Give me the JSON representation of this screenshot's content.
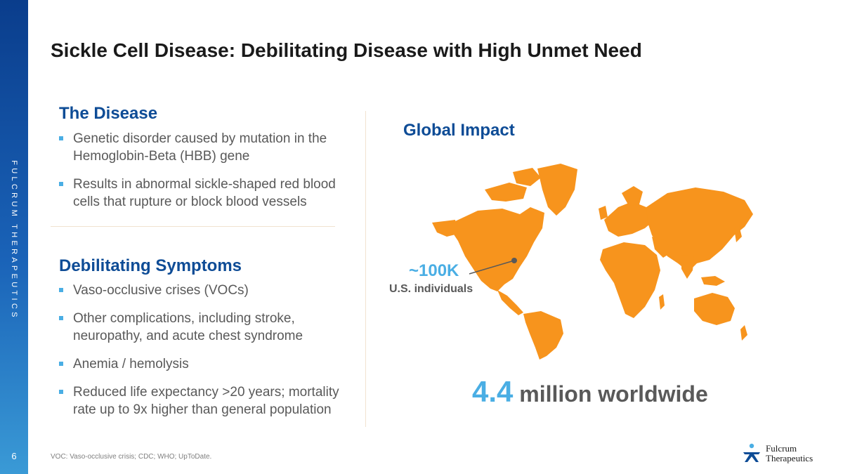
{
  "brand": {
    "vertical_text": "FULCRUM THERAPEUTICS",
    "logo_name": "Fulcrum",
    "logo_sub": "Therapeutics"
  },
  "page_number": "6",
  "title": "Sickle Cell Disease: Debilitating Disease with High Unmet Need",
  "disease": {
    "heading": "The Disease",
    "bullets": [
      "Genetic disorder caused by mutation in the Hemoglobin-Beta (HBB) gene",
      "Results in abnormal sickle-shaped red blood cells that rupture or block blood vessels"
    ]
  },
  "symptoms": {
    "heading": "Debilitating Symptoms",
    "bullets": [
      "Vaso-occlusive crises (VOCs)",
      "Other complications, including stroke, neuropathy, and acute chest syndrome",
      "Anemia / hemolysis",
      "Reduced life expectancy >20 years; mortality rate up to 9x higher than general population"
    ]
  },
  "impact": {
    "heading": "Global Impact",
    "us_value": "~100K",
    "us_label": "U.S. individuals",
    "world_value": "4.4",
    "world_label": " million worldwide"
  },
  "footnote": "VOC: Vaso-occlusive crisis; CDC; WHO; UpToDate.",
  "colors": {
    "sidebar": "#0a3d8c",
    "heading_blue": "#0e4c96",
    "accent": "#4aaee4",
    "map_orange": "#f7941d"
  }
}
